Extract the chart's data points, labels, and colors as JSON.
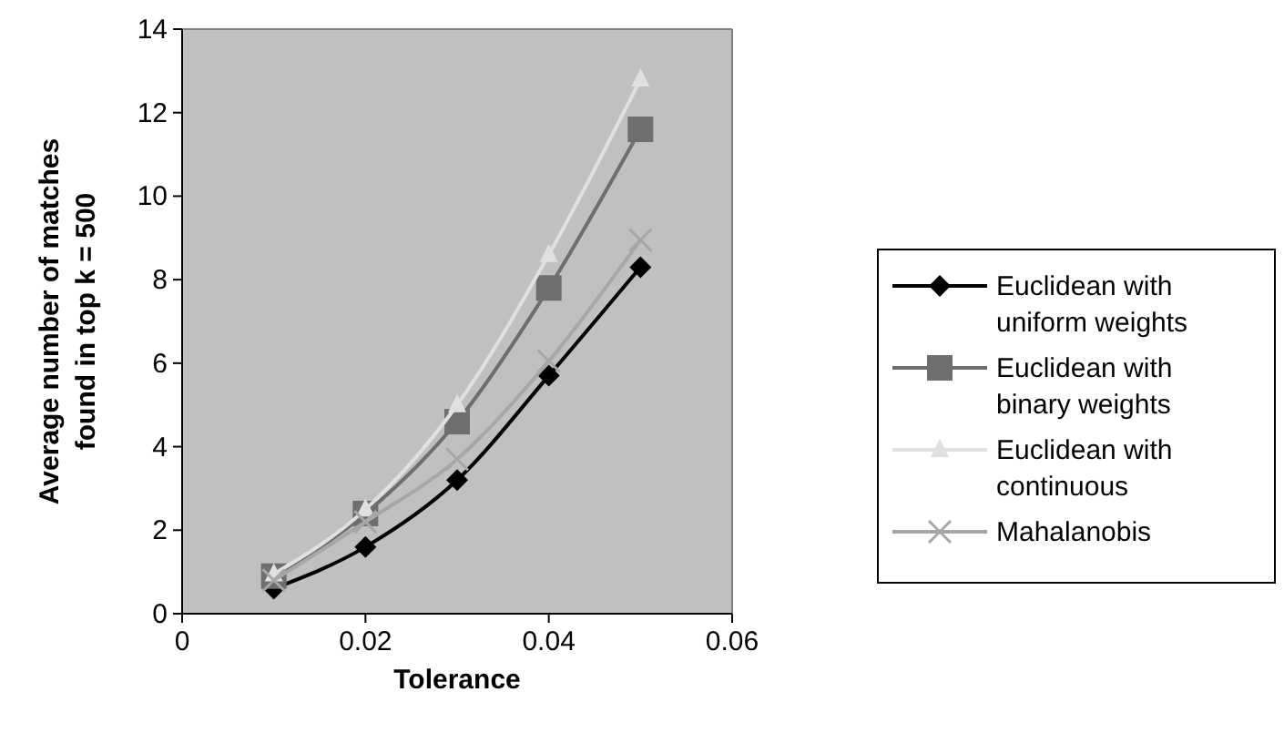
{
  "chart_data": {
    "type": "line",
    "xlabel": "Tolerance",
    "ylabel": "Average number of matches found in top k = 500",
    "x": [
      0.01,
      0.02,
      0.03,
      0.04,
      0.05
    ],
    "series": [
      {
        "name": "Euclidean with uniform weights",
        "color": "#000000",
        "marker": "diamond",
        "values": [
          0.6,
          1.6,
          3.2,
          5.7,
          8.3
        ]
      },
      {
        "name": "Euclidean with binary weights",
        "color": "#6e6e6e",
        "marker": "square",
        "values": [
          0.9,
          2.4,
          4.6,
          7.8,
          11.6
        ]
      },
      {
        "name": "Euclidean with continuous",
        "color": "#e0e0e0",
        "marker": "triangle",
        "values": [
          0.95,
          2.5,
          5.0,
          8.6,
          12.8
        ]
      },
      {
        "name": "Mahalanobis",
        "color": "#a6a6a6",
        "marker": "cross",
        "values": [
          0.8,
          2.2,
          3.7,
          6.05,
          8.95
        ]
      }
    ],
    "xlim": [
      0,
      0.06
    ],
    "xticks": [
      0,
      0.02,
      0.04,
      0.06
    ],
    "ylim": [
      0,
      14
    ],
    "yticks": [
      0,
      2,
      4,
      6,
      8,
      10,
      12,
      14
    ],
    "grid": false,
    "legend": "right",
    "line_style": "solid"
  }
}
